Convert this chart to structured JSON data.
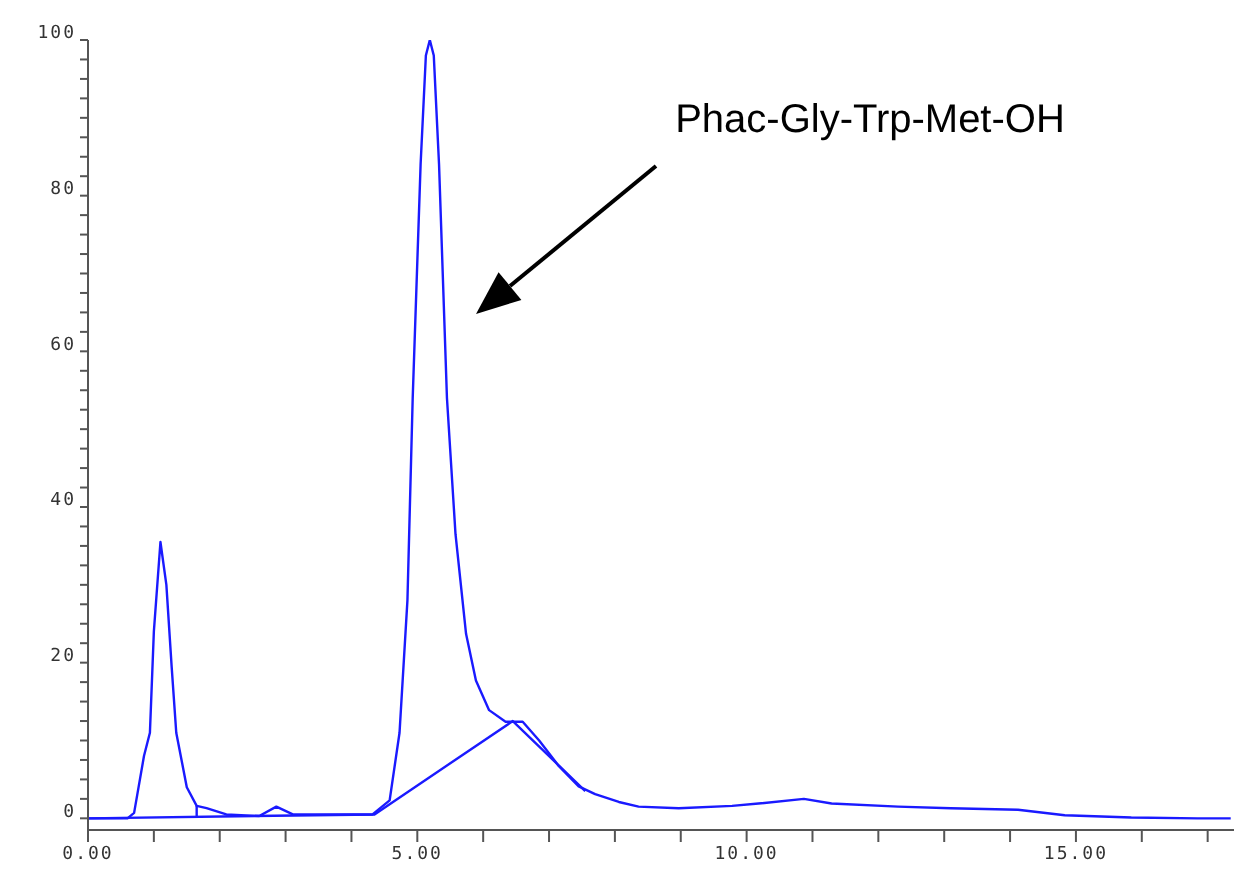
{
  "chart_data": {
    "type": "line",
    "marker": "none",
    "line_style": "solid",
    "xlim": [
      0,
      17.4
    ],
    "ylim": [
      -1.5,
      100
    ],
    "xticks": [
      {
        "value": 0,
        "label": "0.00"
      },
      {
        "value": 1,
        "label": null
      },
      {
        "value": 2,
        "label": null
      },
      {
        "value": 3,
        "label": null
      },
      {
        "value": 4,
        "label": null
      },
      {
        "value": 5,
        "label": "5.00"
      },
      {
        "value": 6,
        "label": null
      },
      {
        "value": 7,
        "label": null
      },
      {
        "value": 8,
        "label": null
      },
      {
        "value": 9,
        "label": null
      },
      {
        "value": 10,
        "label": "10.00"
      },
      {
        "value": 11,
        "label": null
      },
      {
        "value": 12,
        "label": null
      },
      {
        "value": 13,
        "label": null
      },
      {
        "value": 14,
        "label": null
      },
      {
        "value": 15,
        "label": "15.00"
      },
      {
        "value": 16,
        "label": null
      },
      {
        "value": 17,
        "label": null
      }
    ],
    "yticks": [
      0,
      {
        "value": 2.5,
        "label": null
      },
      {
        "value": 5,
        "label": null
      },
      {
        "value": 7.5,
        "label": null
      },
      {
        "value": 10,
        "label": null
      },
      {
        "value": 12.5,
        "label": null
      },
      {
        "value": 15,
        "label": null
      },
      {
        "value": 17.5,
        "label": null
      },
      20,
      {
        "value": 22.5,
        "label": null
      },
      {
        "value": 25,
        "label": null
      },
      {
        "value": 27.5,
        "label": null
      },
      {
        "value": 30,
        "label": null
      },
      {
        "value": 32.5,
        "label": null
      },
      {
        "value": 35,
        "label": null
      },
      {
        "value": 37.5,
        "label": null
      },
      40,
      {
        "value": 42.5,
        "label": null
      },
      {
        "value": 45,
        "label": null
      },
      {
        "value": 47.5,
        "label": null
      },
      {
        "value": 50,
        "label": null
      },
      {
        "value": 52.5,
        "label": null
      },
      {
        "value": 55,
        "label": null
      },
      {
        "value": 57.5,
        "label": null
      },
      60,
      {
        "value": 62.5,
        "label": null
      },
      {
        "value": 65,
        "label": null
      },
      {
        "value": 67.5,
        "label": null
      },
      {
        "value": 70,
        "label": null
      },
      {
        "value": 72.5,
        "label": null
      },
      {
        "value": 75,
        "label": null
      },
      {
        "value": 77.5,
        "label": null
      },
      80,
      {
        "value": 82.5,
        "label": null
      },
      {
        "value": 85,
        "label": null
      },
      {
        "value": 87.5,
        "label": null
      },
      {
        "value": 90,
        "label": null
      },
      {
        "value": 92.5,
        "label": null
      },
      {
        "value": 95,
        "label": null
      },
      {
        "value": 97.5,
        "label": null
      },
      100
    ],
    "annotations": [
      "Phac-Gly-Trp-Met-OH"
    ],
    "series": [
      {
        "color": "#1a1aff",
        "x": [
          0,
          0.6,
          0.7,
          0.85,
          0.94,
          1.0,
          1.1,
          1.19,
          1.27,
          1.34,
          1.5,
          1.65,
          1.8,
          2.1,
          2.6,
          2.86,
          3.11,
          3.5,
          4.32,
          4.58,
          4.73,
          4.85,
          4.93,
          5.05,
          5.13,
          5.19,
          5.25,
          5.33,
          5.45,
          5.58,
          5.74,
          5.89,
          6.09,
          6.34,
          6.6,
          6.85,
          7.15,
          7.45,
          7.7,
          8.06,
          8.36,
          8.97,
          9.78,
          10.18,
          10.87,
          11.29,
          12.3,
          13.1,
          14.12,
          14.83,
          15.84,
          16.85,
          17.35
        ],
        "values": [
          0,
          0,
          0.7,
          8,
          11,
          24,
          35.5,
          30,
          19.5,
          11,
          4,
          1.6,
          1.3,
          0.5,
          0.3,
          1.5,
          0.5,
          0.5,
          0.5,
          2.3,
          11,
          28,
          54,
          84,
          98,
          100,
          98,
          84,
          54,
          36.5,
          23.7,
          17.7,
          13.9,
          12.4,
          12.4,
          10,
          6.7,
          4.1,
          3.1,
          2.1,
          1.5,
          1.3,
          1.6,
          1.9,
          2.5,
          1.9,
          1.5,
          1.3,
          1.1,
          0.4,
          0.1,
          0,
          0
        ]
      },
      {
        "color": "#1a1aff",
        "x": [
          0,
          4.35,
          6.45,
          7.55
        ],
        "values": [
          0,
          0.5,
          12.5,
          3.5
        ]
      },
      {
        "color": "#1a1aff",
        "x": [
          1.65,
          1.65
        ],
        "values": [
          0.2,
          1.6
        ]
      }
    ]
  }
}
